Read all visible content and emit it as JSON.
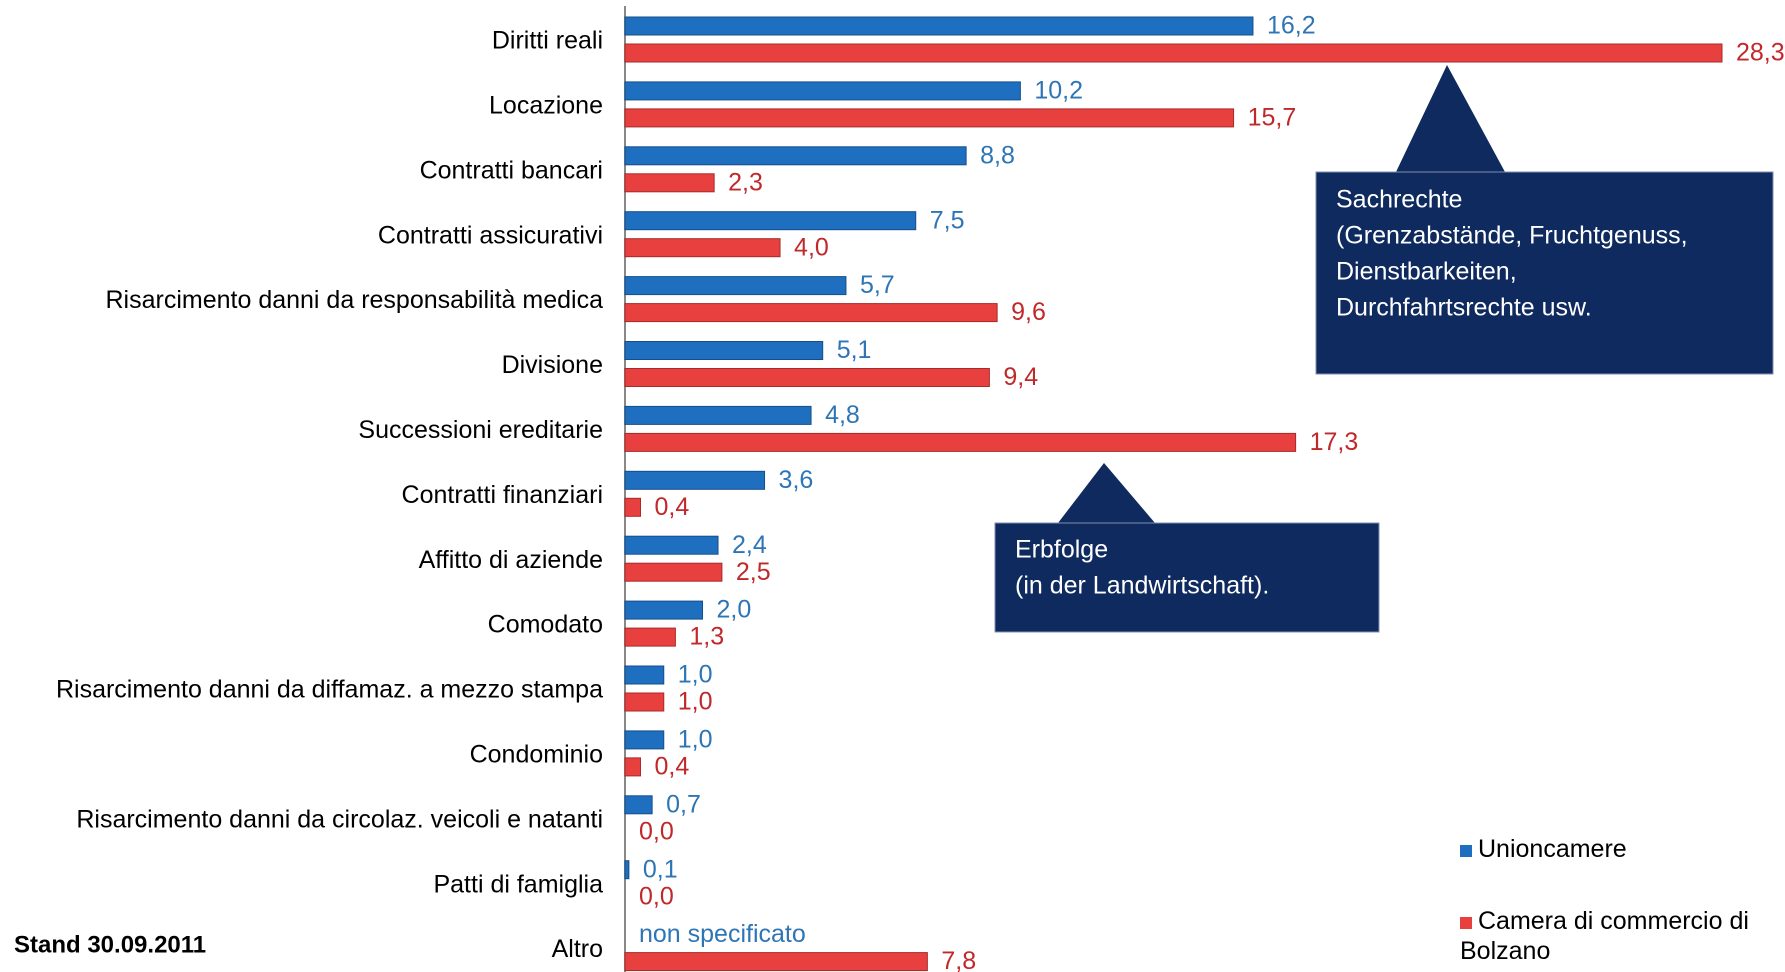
{
  "chart_data": {
    "type": "hbar",
    "categories": [
      "Diritti reali",
      "Locazione",
      "Contratti bancari",
      "Contratti assicurativi",
      "Risarcimento danni da responsabilità medica",
      "Divisione",
      "Successioni ereditarie",
      "Contratti finanziari",
      "Affitto di aziende",
      "Comodato",
      "Risarcimento danni da diffamaz. a mezzo stampa",
      "Condominio",
      "Risarcimento danni da circolaz. veicoli e natanti",
      "Patti di famiglia",
      "Altro"
    ],
    "series": [
      {
        "name": "Unioncamere",
        "color": "#1f6fc0",
        "label_color": "#2e75b6",
        "values": [
          16.2,
          10.2,
          8.8,
          7.5,
          5.7,
          5.1,
          4.8,
          3.6,
          2.4,
          2.0,
          1.0,
          1.0,
          0.7,
          0.1,
          null
        ],
        "value_labels": [
          "16,2",
          "10,2",
          "8,8",
          "7,5",
          "5,7",
          "5,1",
          "4,8",
          "3,6",
          "2,4",
          "2,0",
          "1,0",
          "1,0",
          "0,7",
          "0,1",
          "non specificato"
        ]
      },
      {
        "name": "Camera di commercio di Bolzano",
        "color": "#e8403f",
        "label_color": "#c0282a",
        "values": [
          28.3,
          15.7,
          2.3,
          4.0,
          9.6,
          9.4,
          17.3,
          0.4,
          2.5,
          1.3,
          1.0,
          0.4,
          0.0,
          0.0,
          7.8
        ],
        "value_labels": [
          "28,3",
          "15,7",
          "2,3",
          "4,0",
          "9,6",
          "9,4",
          "17,3",
          "0,4",
          "2,5",
          "1,3",
          "1,0",
          "0,4",
          "0,0",
          "0,0",
          "7,8"
        ]
      }
    ],
    "xlim": [
      0,
      28.3
    ],
    "annotations": [
      {
        "lines": [
          "Sachrechte",
          "(Grenzabstände, Fruchtgenuss,",
          "Dienstbarkeiten,",
          "Durchfahrtsrechte usw."
        ]
      },
      {
        "lines": [
          "Erbfolge",
          "(in der Landwirtschaft)."
        ]
      }
    ],
    "footnote": "Stand 30.09.2011",
    "legend": "bottom-right"
  }
}
